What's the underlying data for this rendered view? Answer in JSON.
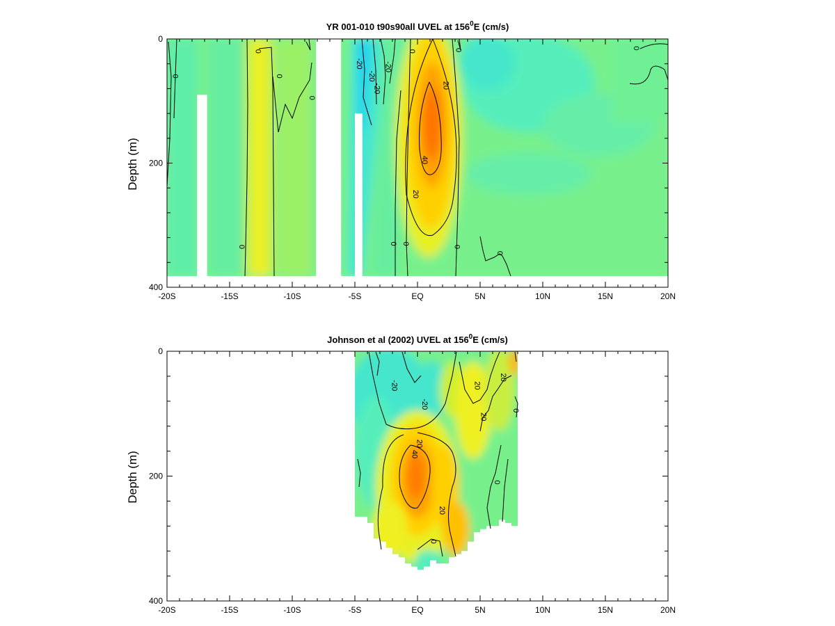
{
  "chart_data": [
    {
      "type": "heatmap",
      "title_prefix": "YR 001-010 t90s90all UVEL at 156",
      "title_sup": "0",
      "title_suffix": "E (cm/s)",
      "ylabel": "Depth (m)",
      "xlim": [
        -20,
        20
      ],
      "ylim": [
        400,
        0
      ],
      "x_ticks": [
        -20,
        -15,
        -10,
        -5,
        0,
        5,
        10,
        15,
        20
      ],
      "x_tick_labels": [
        "-20S",
        "-15S",
        "-10S",
        "-5S",
        "EQ",
        "5N",
        "10N",
        "15N",
        "20N"
      ],
      "y_ticks": [
        0,
        200,
        400
      ],
      "y_tick_labels": [
        "0",
        "200",
        "400"
      ],
      "field_depth_max": 380,
      "gaps": [
        {
          "x0": -17.6,
          "x1": -16.8,
          "y0": 90,
          "y1": 400
        },
        {
          "x0": -8.1,
          "x1": -6.1,
          "y0": 0,
          "y1": 400
        },
        {
          "x0": -5.0,
          "x1": -4.4,
          "y0": 120,
          "y1": 400
        }
      ],
      "contour_labels": [
        {
          "x": -19.3,
          "y": 60,
          "text": "0"
        },
        {
          "x": -11.0,
          "y": 60,
          "text": "0"
        },
        {
          "x": -12.7,
          "y": 20,
          "text": "0"
        },
        {
          "x": -8.4,
          "y": 95,
          "text": "0"
        },
        {
          "x": -14.0,
          "y": 335,
          "text": "0"
        },
        {
          "x": -4.6,
          "y": 40,
          "text": "-20"
        },
        {
          "x": -3.6,
          "y": 60,
          "text": "-20"
        },
        {
          "x": -3.2,
          "y": 80,
          "text": "-20"
        },
        {
          "x": -2.3,
          "y": 45,
          "text": "-20"
        },
        {
          "x": -0.4,
          "y": 20,
          "text": "0"
        },
        {
          "x": 2.3,
          "y": 75,
          "text": "20"
        },
        {
          "x": 0.6,
          "y": 195,
          "text": "40"
        },
        {
          "x": -0.1,
          "y": 250,
          "text": "20"
        },
        {
          "x": -1.9,
          "y": 330,
          "text": "0"
        },
        {
          "x": -0.9,
          "y": 330,
          "text": "0"
        },
        {
          "x": 3.2,
          "y": 335,
          "text": "0"
        },
        {
          "x": 3.3,
          "y": 18,
          "text": "0"
        },
        {
          "x": 6.6,
          "y": 345,
          "text": "0"
        },
        {
          "x": 17.5,
          "y": 15,
          "text": "0"
        }
      ],
      "colorscale": [
        {
          "v": -40,
          "color": "#00ccff"
        },
        {
          "v": -25,
          "color": "#33e3e3"
        },
        {
          "v": -10,
          "color": "#55eebb"
        },
        {
          "v": 0,
          "color": "#77f08c"
        },
        {
          "v": 8,
          "color": "#c5f040"
        },
        {
          "v": 15,
          "color": "#ffff00"
        },
        {
          "v": 25,
          "color": "#ffd000"
        },
        {
          "v": 35,
          "color": "#ffa000"
        },
        {
          "v": 50,
          "color": "#ff6600"
        }
      ]
    },
    {
      "type": "heatmap",
      "title_prefix": "Johnson et al (2002) UVEL at 156",
      "title_sup": "0",
      "title_suffix": "E (cm/s)",
      "ylabel": "Depth (m)",
      "xlim": [
        -20,
        20
      ],
      "ylim": [
        400,
        0
      ],
      "x_ticks": [
        -20,
        -15,
        -10,
        -5,
        0,
        5,
        10,
        15,
        20
      ],
      "x_tick_labels": [
        "-20S",
        "-15S",
        "-10S",
        "-5S",
        "EQ",
        "5N",
        "10N",
        "15N",
        "20N"
      ],
      "y_ticks": [
        0,
        200,
        400
      ],
      "y_tick_labels": [
        "0",
        "200",
        "400"
      ],
      "data_x_range": [
        -5,
        8
      ],
      "bottom_profile": [
        [
          -5.0,
          265
        ],
        [
          -4.0,
          265
        ],
        [
          -3.5,
          275
        ],
        [
          -3.0,
          300
        ],
        [
          -2.5,
          305
        ],
        [
          -2.0,
          315
        ],
        [
          -1.5,
          325
        ],
        [
          -1.0,
          330
        ],
        [
          -0.5,
          340
        ],
        [
          0.0,
          345
        ],
        [
          0.5,
          350
        ],
        [
          1.0,
          345
        ],
        [
          1.5,
          335
        ],
        [
          2.0,
          340
        ],
        [
          2.5,
          340
        ],
        [
          3.0,
          330
        ],
        [
          3.5,
          325
        ],
        [
          4.0,
          320
        ],
        [
          4.5,
          305
        ],
        [
          5.0,
          290
        ],
        [
          5.5,
          285
        ],
        [
          6.0,
          280
        ],
        [
          6.5,
          280
        ],
        [
          7.0,
          270
        ],
        [
          7.5,
          275
        ],
        [
          8.0,
          280
        ]
      ],
      "contour_labels": [
        {
          "x": -1.8,
          "y": 55,
          "text": "-20"
        },
        {
          "x": 0.6,
          "y": 85,
          "text": "-20"
        },
        {
          "x": 0.2,
          "y": 148,
          "text": "20"
        },
        {
          "x": -0.2,
          "y": 165,
          "text": "40"
        },
        {
          "x": 4.8,
          "y": 55,
          "text": "20"
        },
        {
          "x": 6.9,
          "y": 42,
          "text": "20"
        },
        {
          "x": 5.3,
          "y": 105,
          "text": "20"
        },
        {
          "x": 2.0,
          "y": 255,
          "text": "20"
        },
        {
          "x": 6.4,
          "y": 210,
          "text": "0"
        },
        {
          "x": 7.9,
          "y": 95,
          "text": "0"
        },
        {
          "x": 1.3,
          "y": 305,
          "text": "0"
        }
      ]
    }
  ]
}
